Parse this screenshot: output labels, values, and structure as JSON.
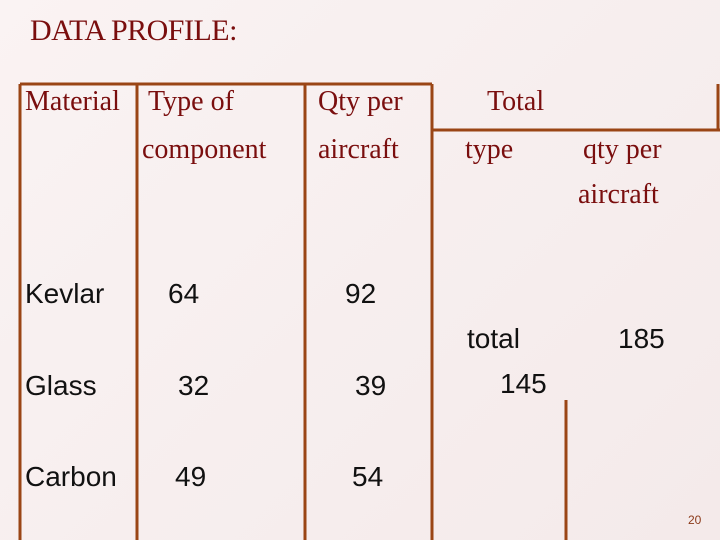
{
  "title": "DATA PROFILE:",
  "table": {
    "headers": {
      "material": "Material",
      "type_of_component": [
        "Type of",
        "component"
      ],
      "qty_per_aircraft": [
        "Qty per",
        "aircraft"
      ],
      "total": [
        "Total",
        "type"
      ],
      "total_qty": [
        "qty per",
        "aircraft"
      ]
    },
    "rows": [
      [
        "Kevlar",
        "64",
        "92"
      ],
      [
        "Glass",
        "32",
        "39"
      ],
      [
        "Carbon",
        "49",
        "54"
      ]
    ],
    "totals": {
      "type_label": "total",
      "type_value": "145",
      "qty_value": "185"
    }
  },
  "page_number": "20"
}
